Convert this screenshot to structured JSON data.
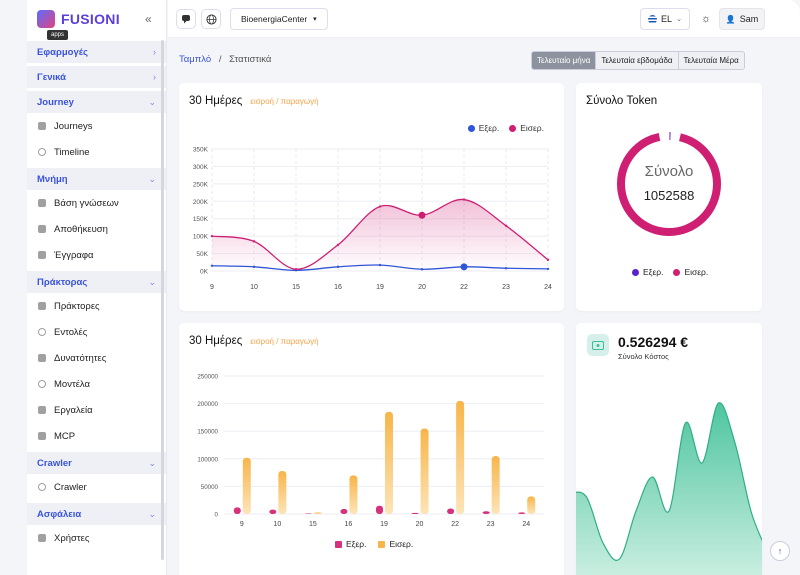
{
  "app": {
    "name": "FUSIONI",
    "tooltip": "apps"
  },
  "sidebar": {
    "sections": [
      {
        "label": "Εφαρμογές",
        "chev": "›",
        "items": []
      },
      {
        "label": "Γενικά",
        "chev": "›",
        "items": []
      },
      {
        "label": "Journey",
        "chev": "⌄",
        "items": [
          {
            "label": "Journeys",
            "icon": "book-icon"
          },
          {
            "label": "Timeline",
            "icon": "clock-icon"
          }
        ]
      },
      {
        "label": "Μνήμη",
        "chev": "⌄",
        "items": [
          {
            "label": "Βάση γνώσεων",
            "icon": "graduation-cap-icon"
          },
          {
            "label": "Αποθήκευση",
            "icon": "storage-icon"
          },
          {
            "label": "Έγγραφα",
            "icon": "document-icon"
          }
        ]
      },
      {
        "label": "Πράκτορας",
        "chev": "⌄",
        "items": [
          {
            "label": "Πράκτορες",
            "icon": "user-icon"
          },
          {
            "label": "Εντολές",
            "icon": "chat-icon"
          },
          {
            "label": "Δυνατότητες",
            "icon": "grid-icon"
          },
          {
            "label": "Μοντέλα",
            "icon": "chip-icon"
          },
          {
            "label": "Εργαλεία",
            "icon": "wrench-icon"
          },
          {
            "label": "MCP",
            "icon": "server-icon"
          }
        ]
      },
      {
        "label": "Crawler",
        "chev": "⌄",
        "items": [
          {
            "label": "Crawler",
            "icon": "globe-icon"
          }
        ]
      },
      {
        "label": "Ασφάλεια",
        "chev": "⌄",
        "items": [
          {
            "label": "Χρήστες",
            "icon": "user-icon"
          }
        ]
      }
    ]
  },
  "header": {
    "workspace": "BioenergiaCenter",
    "language": "EL",
    "user": "Sam"
  },
  "breadcrumb": {
    "home": "Ταμπλό",
    "sep": "/",
    "current": "Στατιστικά"
  },
  "period_tabs": [
    "Τελευταίο μήνα",
    "Τελευταία εβδομάδα",
    "Τελευταία Μέρα"
  ],
  "cards": {
    "tokens_chart": {
      "title": "30 Ημέρες",
      "subtitle": "εισροή / παραγωγή",
      "legend": [
        "Εξερ.",
        "Εισερ."
      ]
    },
    "total_tokens": {
      "title": "Σύνολο Token",
      "center_label": "Σύνολο",
      "center_value": "1052588",
      "legend": [
        "Εξερ.",
        "Εισερ."
      ]
    },
    "cost_chart": {
      "title": "30 Ημέρες",
      "subtitle": "εισροή / παραγωγή",
      "legend": [
        "Εξερ.",
        "Εισερ."
      ]
    },
    "total_cost": {
      "value": "0.526294 €",
      "label": "Σύνολο Κόστος"
    }
  },
  "colors": {
    "accent": "#3a54d9",
    "inbound": "#cf1f73",
    "outbound": "#2f56d8",
    "bar_in": "#f7b54a",
    "bar_out": "#d6317d",
    "cost": "#3bbf95"
  },
  "chart_data": [
    {
      "type": "line",
      "x": [
        9,
        10,
        15,
        16,
        19,
        20,
        22,
        23,
        24
      ],
      "y_ticks": [
        "0K",
        "50K",
        "100K",
        "150K",
        "200K",
        "250K",
        "300K",
        "350K"
      ],
      "ylim": [
        0,
        350000
      ],
      "series": [
        {
          "name": "Εξερ.",
          "values": [
            15000,
            12000,
            2000,
            12000,
            17000,
            5000,
            12000,
            8000,
            6000
          ]
        },
        {
          "name": "Εισερ.",
          "values": [
            100000,
            85000,
            5000,
            75000,
            185000,
            160000,
            205000,
            130000,
            32000
          ]
        }
      ]
    },
    {
      "type": "donut",
      "series": [
        {
          "name": "Εξερ.",
          "values": [
            37000
          ]
        },
        {
          "name": "Εισερ.",
          "values": [
            1015588
          ]
        }
      ]
    },
    {
      "type": "bar",
      "categories": [
        "9",
        "10",
        "15",
        "16",
        "19",
        "20",
        "22",
        "23",
        "24"
      ],
      "y_ticks": [
        "0",
        "50000",
        "100000",
        "150000",
        "200000",
        "250000"
      ],
      "ylim": [
        0,
        250000
      ],
      "series": [
        {
          "name": "Εξερ.",
          "values": [
            12000,
            8000,
            1000,
            9000,
            15000,
            2000,
            10000,
            5000,
            3000
          ]
        },
        {
          "name": "Εισερ.",
          "values": [
            102000,
            78000,
            3000,
            70000,
            185000,
            155000,
            205000,
            105000,
            32000
          ]
        }
      ]
    },
    {
      "type": "area",
      "values": [
        0.45,
        0.43,
        0.2,
        0.12,
        0.36,
        0.53,
        0.36,
        0.8,
        0.6,
        0.9,
        0.7,
        0.35,
        0.15
      ]
    }
  ]
}
